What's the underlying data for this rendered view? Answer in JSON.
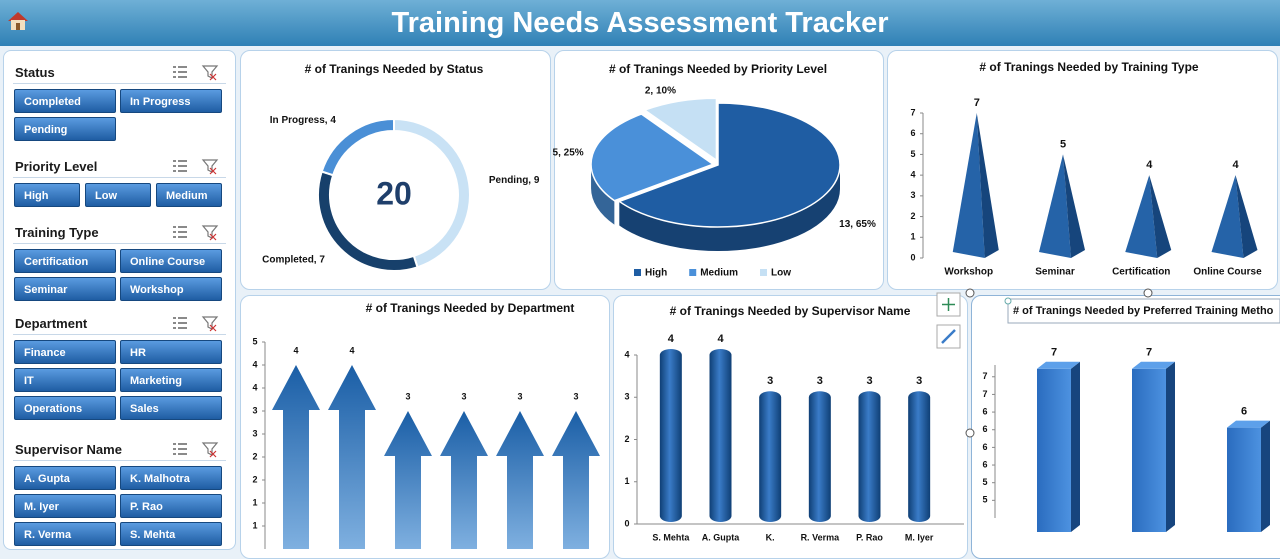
{
  "header": {
    "title": "Training Needs Assessment Tracker"
  },
  "slicers": [
    {
      "title": "Status",
      "items": [
        "Completed",
        "In Progress",
        "Pending"
      ]
    },
    {
      "title": "Priority Level",
      "items": [
        "High",
        "Low",
        "Medium"
      ]
    },
    {
      "title": "Training Type",
      "items": [
        "Certification",
        "Online Course",
        "Seminar",
        "Workshop"
      ]
    },
    {
      "title": "Department",
      "items": [
        "Finance",
        "HR",
        "IT",
        "Marketing",
        "Operations",
        "Sales"
      ]
    },
    {
      "title": "Supervisor Name",
      "items": [
        "A. Gupta",
        "K. Malhotra",
        "M. Iyer",
        "P. Rao",
        "R. Verma",
        "S. Mehta"
      ]
    }
  ],
  "chart_data": [
    {
      "type": "donut",
      "title": "# of Tranings Needed by Status",
      "categories": [
        "Pending",
        "Completed",
        "In Progress"
      ],
      "values": [
        9,
        7,
        4
      ],
      "value_labels": [
        "Pending, 9",
        "Completed, 7",
        "In Progress, 4"
      ],
      "total": 20,
      "colors": [
        "#c9e2f5",
        "#17406b",
        "#4a8fd6"
      ]
    },
    {
      "type": "pie",
      "title": "# of Tranings Needed  by Priority Level",
      "categories": [
        "High",
        "Medium",
        "Low"
      ],
      "values": [
        13,
        5,
        2
      ],
      "value_labels": [
        "13, 65%",
        "5, 25%",
        "2, 10%"
      ],
      "colors": [
        "#1f5da3",
        "#4a90d9",
        "#c5e0f4"
      ],
      "legend": "bottom"
    },
    {
      "type": "pyramid",
      "title": "# of Tranings Needed by Training Type",
      "categories": [
        "Workshop",
        "Seminar",
        "Certification",
        "Online Course"
      ],
      "values": [
        7,
        5,
        4,
        4
      ],
      "color": "#2563a8",
      "ylim": [
        0,
        7
      ],
      "yticks": [
        0,
        1,
        2,
        3,
        4,
        5,
        6,
        7
      ]
    },
    {
      "type": "arrow",
      "title": "# of Tranings Needed  by Department",
      "categories": [
        null,
        null,
        null,
        null,
        null,
        null
      ],
      "values": [
        4,
        4,
        3,
        3,
        3,
        3
      ],
      "color": "#1a5ea6",
      "ylim": [
        0,
        4.5
      ],
      "yticks": [
        {
          "value": 0.5,
          "label": "1"
        },
        {
          "value": 1,
          "label": "1"
        },
        {
          "value": 1.5,
          "label": "2"
        },
        {
          "value": 2,
          "label": "2"
        },
        {
          "value": 2.5,
          "label": "3"
        },
        {
          "value": 3,
          "label": "3"
        },
        {
          "value": 3.5,
          "label": "4"
        },
        {
          "value": 4,
          "label": "4"
        },
        {
          "value": 4.5,
          "label": "5"
        }
      ]
    },
    {
      "type": "cylinder",
      "title": "# of Tranings Needed by Supervisor Name",
      "categories": [
        "S. Mehta",
        "A. Gupta",
        "K.",
        "R. Verma",
        "P. Rao",
        "M. Iyer"
      ],
      "values": [
        4,
        4,
        3,
        3,
        3,
        3
      ],
      "color": "#1f5da3",
      "ylim": [
        0,
        4
      ],
      "yticks": [
        0,
        1,
        2,
        3,
        4
      ]
    },
    {
      "type": "bar3d",
      "title": "# of Tranings Needed  by Preferred Training Metho",
      "categories": [
        null,
        null,
        null
      ],
      "values": [
        7,
        7,
        6
      ],
      "color": "#2f74c7",
      "ylim": [
        4.6,
        7.2
      ],
      "yticks": [
        {
          "value": 4.9,
          "label": "5"
        },
        {
          "value": 5.2,
          "label": "5"
        },
        {
          "value": 5.5,
          "label": "6"
        },
        {
          "value": 5.8,
          "label": "6"
        },
        {
          "value": 6.1,
          "label": "6"
        },
        {
          "value": 6.4,
          "label": "6"
        },
        {
          "value": 6.7,
          "label": "7"
        },
        {
          "value": 7.0,
          "label": "7"
        }
      ]
    }
  ]
}
